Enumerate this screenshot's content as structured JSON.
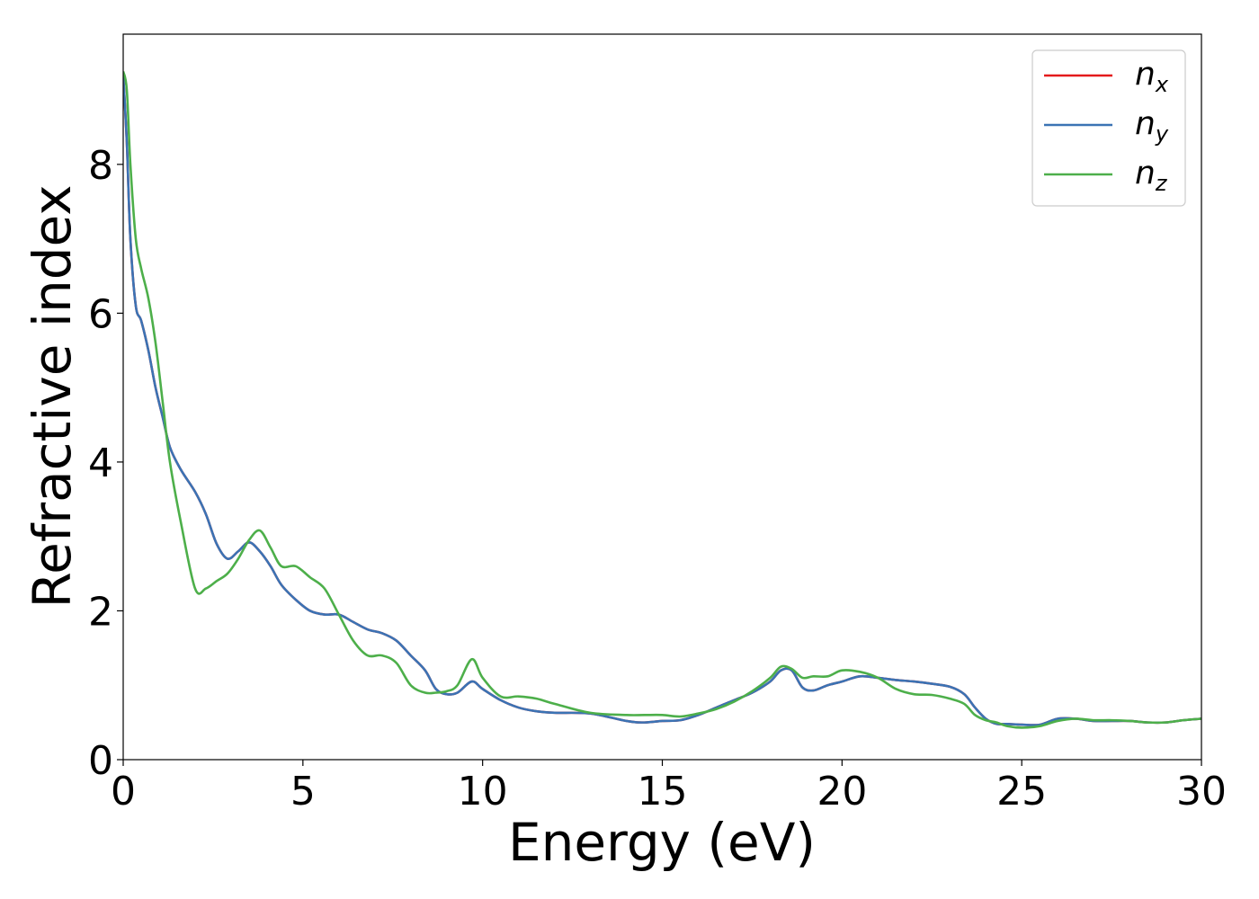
{
  "chart_data": {
    "type": "line",
    "xlabel": "Energy (eV)",
    "ylabel": "Refractive index",
    "xlim": [
      0,
      30
    ],
    "ylim": [
      0,
      9.75
    ],
    "xticks": [
      0,
      5,
      10,
      15,
      20,
      25,
      30
    ],
    "yticks": [
      0,
      2,
      4,
      6,
      8
    ],
    "grid": false,
    "legend_position": "top-right",
    "series": [
      {
        "name": "n_x",
        "label_main": "n",
        "label_sub": "x",
        "color": "#e41a1c",
        "x": [
          0,
          0.1,
          0.2,
          0.35,
          0.5,
          0.7,
          0.9,
          1.1,
          1.3,
          1.6,
          2.0,
          2.3,
          2.6,
          2.9,
          3.2,
          3.5,
          3.8,
          4.1,
          4.4,
          4.8,
          5.2,
          5.6,
          6.0,
          6.4,
          6.8,
          7.2,
          7.6,
          8.0,
          8.4,
          8.7,
          9.0,
          9.3,
          9.7,
          10.0,
          10.5,
          11.0,
          11.5,
          12.0,
          13.0,
          14.0,
          14.5,
          15.0,
          15.5,
          16.0,
          16.5,
          17.0,
          17.5,
          18.0,
          18.3,
          18.6,
          18.9,
          19.2,
          19.6,
          20.0,
          20.5,
          21.0,
          21.5,
          22.0,
          22.5,
          23.0,
          23.4,
          23.7,
          24.0,
          24.3,
          24.6,
          25.0,
          25.5,
          26.0,
          26.5,
          27.0,
          27.5,
          28.0,
          28.5,
          29.0,
          29.5,
          30.0
        ],
        "y": [
          9.2,
          8.3,
          7.0,
          6.1,
          5.9,
          5.5,
          5.0,
          4.6,
          4.2,
          3.9,
          3.6,
          3.3,
          2.9,
          2.7,
          2.8,
          2.92,
          2.8,
          2.6,
          2.35,
          2.15,
          2.0,
          1.95,
          1.95,
          1.85,
          1.75,
          1.7,
          1.6,
          1.4,
          1.2,
          0.95,
          0.88,
          0.9,
          1.05,
          0.95,
          0.8,
          0.7,
          0.65,
          0.63,
          0.62,
          0.52,
          0.5,
          0.52,
          0.53,
          0.6,
          0.7,
          0.8,
          0.9,
          1.05,
          1.2,
          1.2,
          0.97,
          0.93,
          1.0,
          1.05,
          1.12,
          1.1,
          1.07,
          1.05,
          1.02,
          0.98,
          0.88,
          0.7,
          0.55,
          0.48,
          0.48,
          0.47,
          0.47,
          0.55,
          0.55,
          0.52,
          0.52,
          0.52,
          0.5,
          0.5,
          0.53,
          0.55
        ]
      },
      {
        "name": "n_y",
        "label_main": "n",
        "label_sub": "y",
        "color": "#3b73b4",
        "x": [
          0,
          0.1,
          0.2,
          0.35,
          0.5,
          0.7,
          0.9,
          1.1,
          1.3,
          1.6,
          2.0,
          2.3,
          2.6,
          2.9,
          3.2,
          3.5,
          3.8,
          4.1,
          4.4,
          4.8,
          5.2,
          5.6,
          6.0,
          6.4,
          6.8,
          7.2,
          7.6,
          8.0,
          8.4,
          8.7,
          9.0,
          9.3,
          9.7,
          10.0,
          10.5,
          11.0,
          11.5,
          12.0,
          13.0,
          14.0,
          14.5,
          15.0,
          15.5,
          16.0,
          16.5,
          17.0,
          17.5,
          18.0,
          18.3,
          18.6,
          18.9,
          19.2,
          19.6,
          20.0,
          20.5,
          21.0,
          21.5,
          22.0,
          22.5,
          23.0,
          23.4,
          23.7,
          24.0,
          24.3,
          24.6,
          25.0,
          25.5,
          26.0,
          26.5,
          27.0,
          27.5,
          28.0,
          28.5,
          29.0,
          29.5,
          30.0
        ],
        "y": [
          9.2,
          8.3,
          7.0,
          6.1,
          5.9,
          5.5,
          5.0,
          4.6,
          4.2,
          3.9,
          3.6,
          3.3,
          2.9,
          2.7,
          2.8,
          2.92,
          2.8,
          2.6,
          2.35,
          2.15,
          2.0,
          1.95,
          1.95,
          1.85,
          1.75,
          1.7,
          1.6,
          1.4,
          1.2,
          0.95,
          0.88,
          0.9,
          1.05,
          0.95,
          0.8,
          0.7,
          0.65,
          0.63,
          0.62,
          0.52,
          0.5,
          0.52,
          0.53,
          0.6,
          0.7,
          0.8,
          0.9,
          1.05,
          1.2,
          1.2,
          0.97,
          0.93,
          1.0,
          1.05,
          1.12,
          1.1,
          1.07,
          1.05,
          1.02,
          0.98,
          0.88,
          0.7,
          0.55,
          0.48,
          0.48,
          0.47,
          0.47,
          0.55,
          0.55,
          0.52,
          0.52,
          0.52,
          0.5,
          0.5,
          0.53,
          0.55
        ]
      },
      {
        "name": "n_z",
        "label_main": "n",
        "label_sub": "z",
        "color": "#4daf4a",
        "x": [
          0,
          0.1,
          0.2,
          0.35,
          0.5,
          0.7,
          0.9,
          1.1,
          1.3,
          1.6,
          2.0,
          2.3,
          2.6,
          2.9,
          3.2,
          3.5,
          3.8,
          4.1,
          4.4,
          4.8,
          5.2,
          5.6,
          6.0,
          6.4,
          6.8,
          7.2,
          7.6,
          8.0,
          8.4,
          8.7,
          9.0,
          9.3,
          9.7,
          10.0,
          10.5,
          11.0,
          11.5,
          12.0,
          13.0,
          14.0,
          14.5,
          15.0,
          15.5,
          16.0,
          16.5,
          17.0,
          17.5,
          18.0,
          18.3,
          18.6,
          18.9,
          19.2,
          19.6,
          20.0,
          20.5,
          21.0,
          21.5,
          22.0,
          22.5,
          23.0,
          23.4,
          23.7,
          24.0,
          24.3,
          24.6,
          25.0,
          25.5,
          26.0,
          26.5,
          27.0,
          27.5,
          28.0,
          28.5,
          29.0,
          29.5,
          30.0
        ],
        "y": [
          9.25,
          9.0,
          8.0,
          7.0,
          6.6,
          6.2,
          5.6,
          4.8,
          4.0,
          3.2,
          2.3,
          2.3,
          2.4,
          2.5,
          2.7,
          2.95,
          3.08,
          2.85,
          2.6,
          2.6,
          2.45,
          2.3,
          1.95,
          1.6,
          1.4,
          1.4,
          1.3,
          1.0,
          0.9,
          0.9,
          0.92,
          1.0,
          1.35,
          1.1,
          0.85,
          0.85,
          0.82,
          0.75,
          0.63,
          0.6,
          0.6,
          0.6,
          0.58,
          0.62,
          0.68,
          0.78,
          0.92,
          1.1,
          1.25,
          1.22,
          1.1,
          1.12,
          1.12,
          1.2,
          1.18,
          1.1,
          0.95,
          0.88,
          0.87,
          0.82,
          0.75,
          0.6,
          0.53,
          0.5,
          0.45,
          0.43,
          0.45,
          0.52,
          0.55,
          0.53,
          0.53,
          0.52,
          0.5,
          0.5,
          0.53,
          0.55
        ]
      }
    ]
  }
}
